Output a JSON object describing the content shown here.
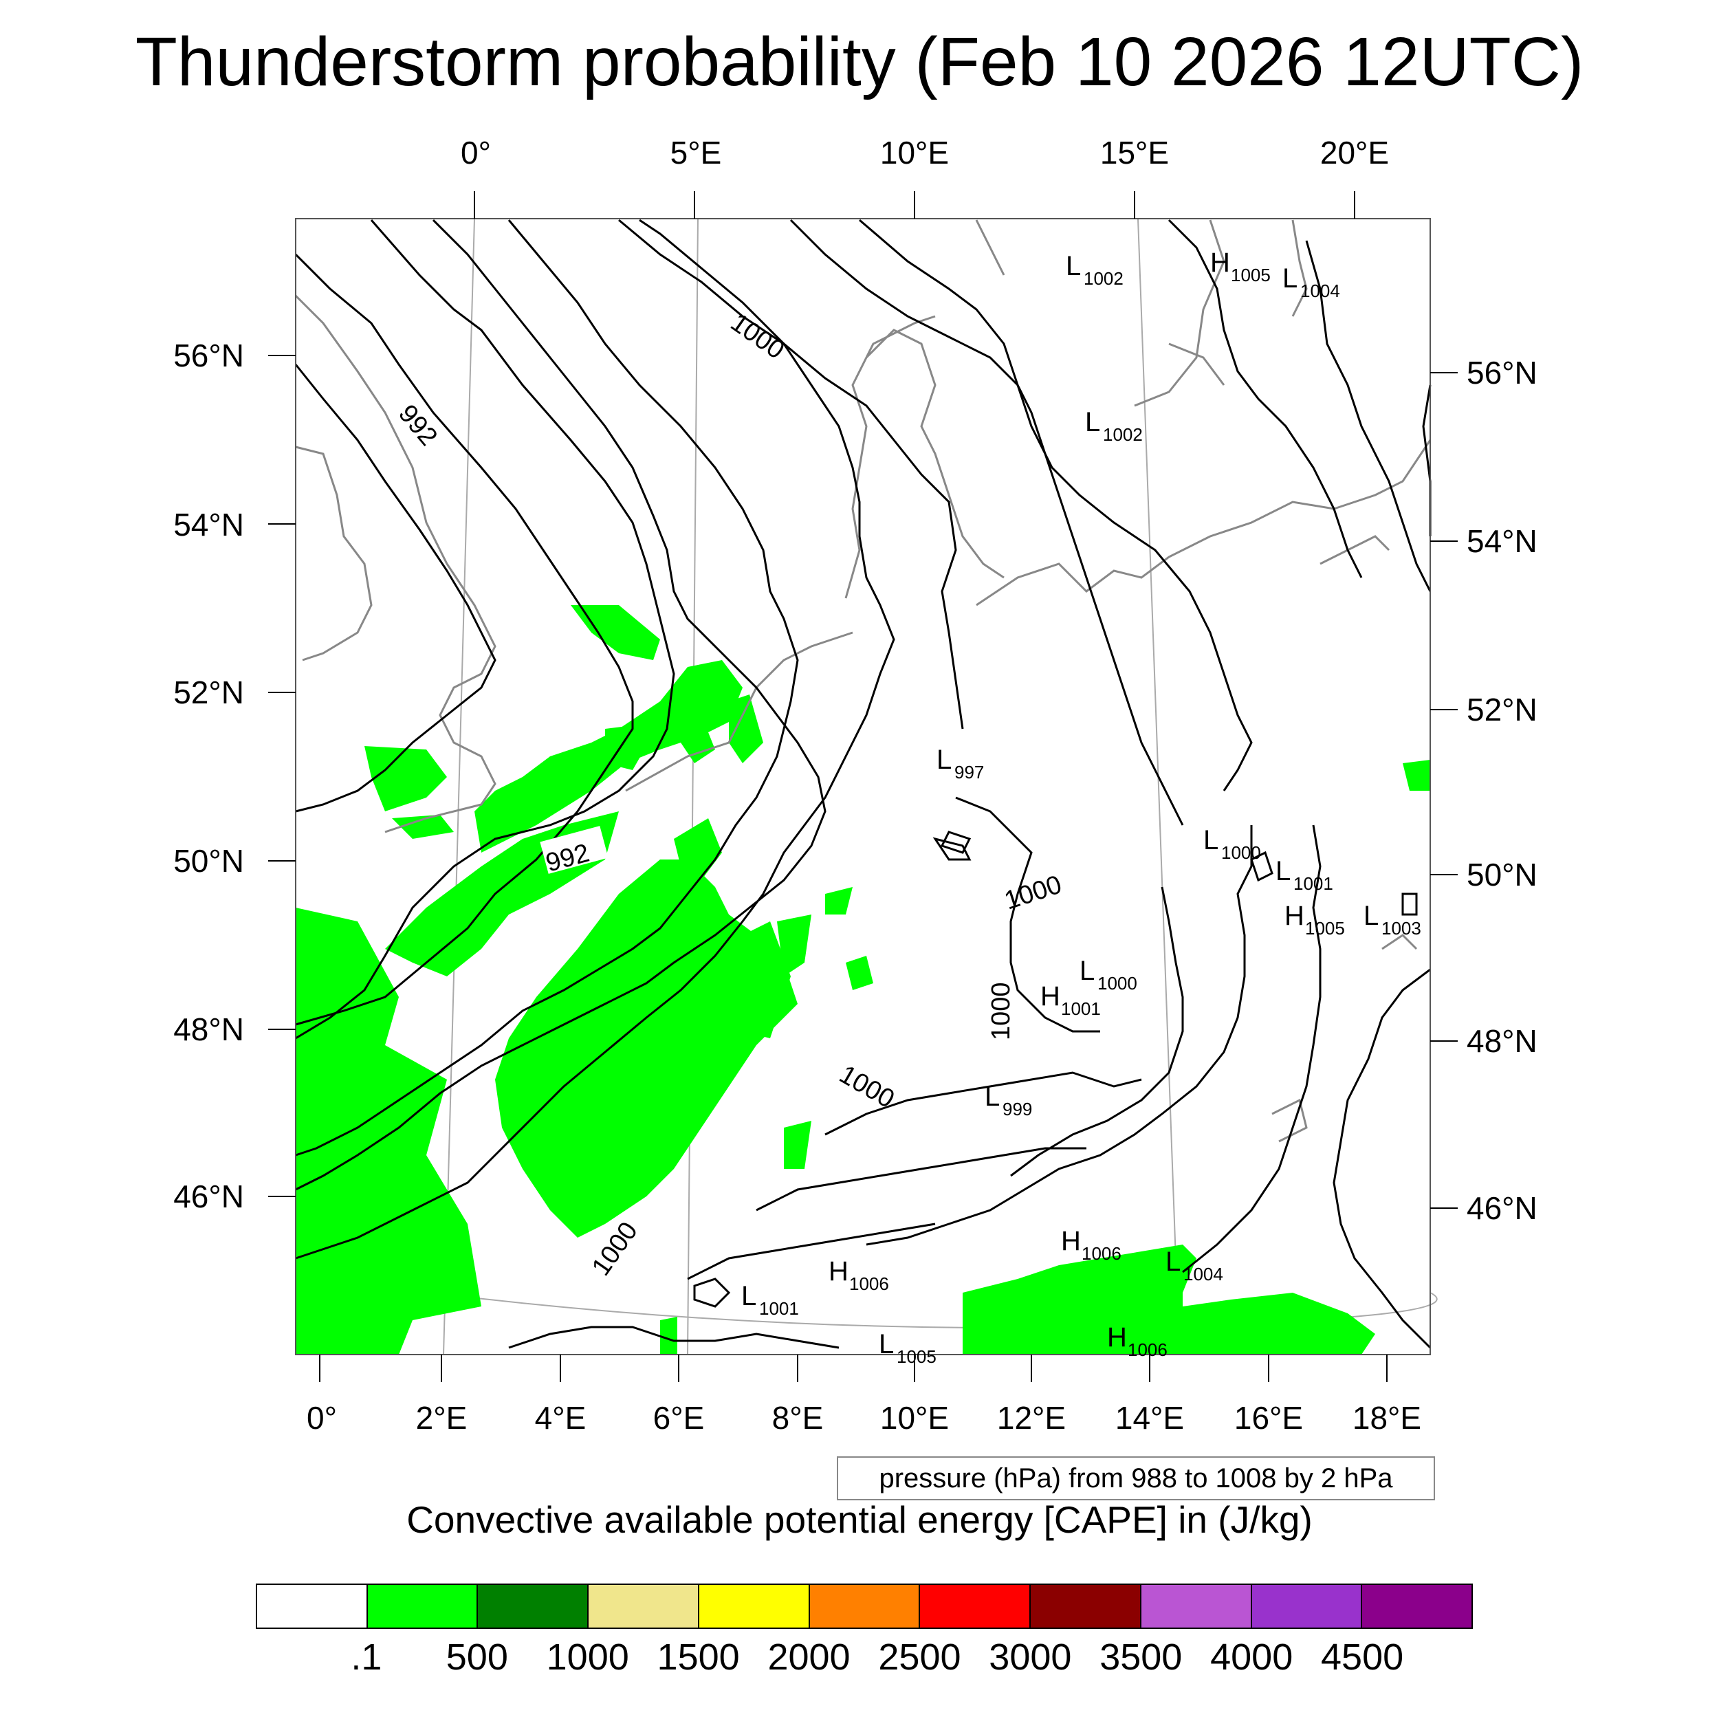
{
  "title": "Thunderstorm probability (Feb 10 2026 12UTC)",
  "map": {
    "top_lon_labels": [
      "0°",
      "5°E",
      "10°E",
      "15°E",
      "20°E"
    ],
    "left_lat_labels": [
      "56°N",
      "54°N",
      "52°N",
      "50°N",
      "48°N",
      "46°N"
    ],
    "right_lat_labels": [
      "56°N",
      "54°N",
      "52°N",
      "50°N",
      "48°N",
      "46°N"
    ],
    "bottom_lon_labels": [
      "0°",
      "2°E",
      "4°E",
      "6°E",
      "8°E",
      "10°E",
      "12°E",
      "14°E",
      "16°E",
      "18°E"
    ],
    "isobar_labels": [
      "1000",
      "992",
      "992",
      "1000",
      "1000",
      "1000",
      "1000"
    ],
    "pressure_centers": [
      {
        "type": "L",
        "value": "1002"
      },
      {
        "type": "H",
        "value": "1005"
      },
      {
        "type": "L",
        "value": "1004"
      },
      {
        "type": "L",
        "value": "1002"
      },
      {
        "type": "L",
        "value": "997"
      },
      {
        "type": "L",
        "value": "1000"
      },
      {
        "type": "L",
        "value": "1001"
      },
      {
        "type": "H",
        "value": "1005"
      },
      {
        "type": "L",
        "value": "1003"
      },
      {
        "type": "L",
        "value": "1000"
      },
      {
        "type": "H",
        "value": "1001"
      },
      {
        "type": "L",
        "value": "999"
      },
      {
        "type": "H",
        "value": "1006"
      },
      {
        "type": "L",
        "value": "1004"
      },
      {
        "type": "H",
        "value": "1006"
      },
      {
        "type": "L",
        "value": "1001"
      },
      {
        "type": "H",
        "value": "1006"
      },
      {
        "type": "L",
        "value": "1005"
      }
    ],
    "colors": {
      "cape_fill": "#00ff00",
      "coastline": "#888888",
      "isobar": "#000000",
      "grid": "#aaaaaa"
    }
  },
  "contour_info": "pressure (hPa) from 988 to 1008 by 2 hPa",
  "legend": {
    "title": "Convective available potential energy [CAPE] in (J/kg)",
    "colors": [
      "#ffffff",
      "#00ff00",
      "#008000",
      "#f0e68c",
      "#ffff00",
      "#ff8000",
      "#ff0000",
      "#8b0000",
      "#ba55d3",
      "#9932cc",
      "#8b008b"
    ],
    "labels": [
      ".1",
      "500",
      "1000",
      "1500",
      "2000",
      "2500",
      "3000",
      "3500",
      "4000",
      "4500"
    ]
  }
}
